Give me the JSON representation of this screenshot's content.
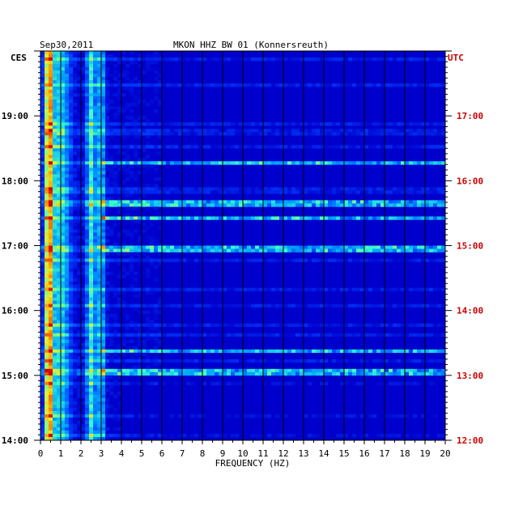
{
  "chart_data": {
    "type": "heatmap",
    "date": "Sep30,2011",
    "title": "MKON HHZ BW 01 (Konnersreuth)",
    "xlabel": "FREQUENCY (HZ)",
    "xlim": [
      0,
      20
    ],
    "x_ticks": [
      "0",
      "1",
      "2",
      "3",
      "4",
      "5",
      "6",
      "7",
      "8",
      "9",
      "10",
      "11",
      "12",
      "13",
      "14",
      "15",
      "16",
      "17",
      "18",
      "19",
      "20"
    ],
    "left_axis": {
      "label": "CES",
      "ticks": [
        {
          "hour": 19,
          "label": "19:00"
        },
        {
          "hour": 18,
          "label": "18:00"
        },
        {
          "hour": 17,
          "label": "17:00"
        },
        {
          "hour": 16,
          "label": "16:00"
        },
        {
          "hour": 15,
          "label": "15:00"
        },
        {
          "hour": 14,
          "label": "14:00"
        }
      ],
      "range_hours": [
        14,
        20
      ]
    },
    "right_axis": {
      "label": "UTC",
      "color": "#cc0000",
      "ticks": [
        {
          "hour": 17,
          "label": "17:00"
        },
        {
          "hour": 16,
          "label": "16:00"
        },
        {
          "hour": 15,
          "label": "15:00"
        },
        {
          "hour": 14,
          "label": "14:00"
        },
        {
          "hour": 13,
          "label": "13:00"
        },
        {
          "hour": 12,
          "label": "12:00"
        }
      ],
      "range_hours": [
        12,
        18
      ]
    },
    "colors": {
      "background": "#0000cc",
      "grid": "#000000",
      "text": "#000000"
    },
    "grid": true,
    "notable_bands": [
      {
        "freq_hz": 0.4,
        "description": "strong persistent band",
        "level": "high"
      },
      {
        "freq_hz": 2.5,
        "description": "persistent band",
        "level": "medium"
      },
      {
        "freq_hz": 3.0,
        "description": "persistent band",
        "level": "medium"
      }
    ],
    "broadband_events_local_hour": [
      18.27,
      17.65,
      17.42,
      16.95,
      15.38,
      15.05
    ]
  }
}
